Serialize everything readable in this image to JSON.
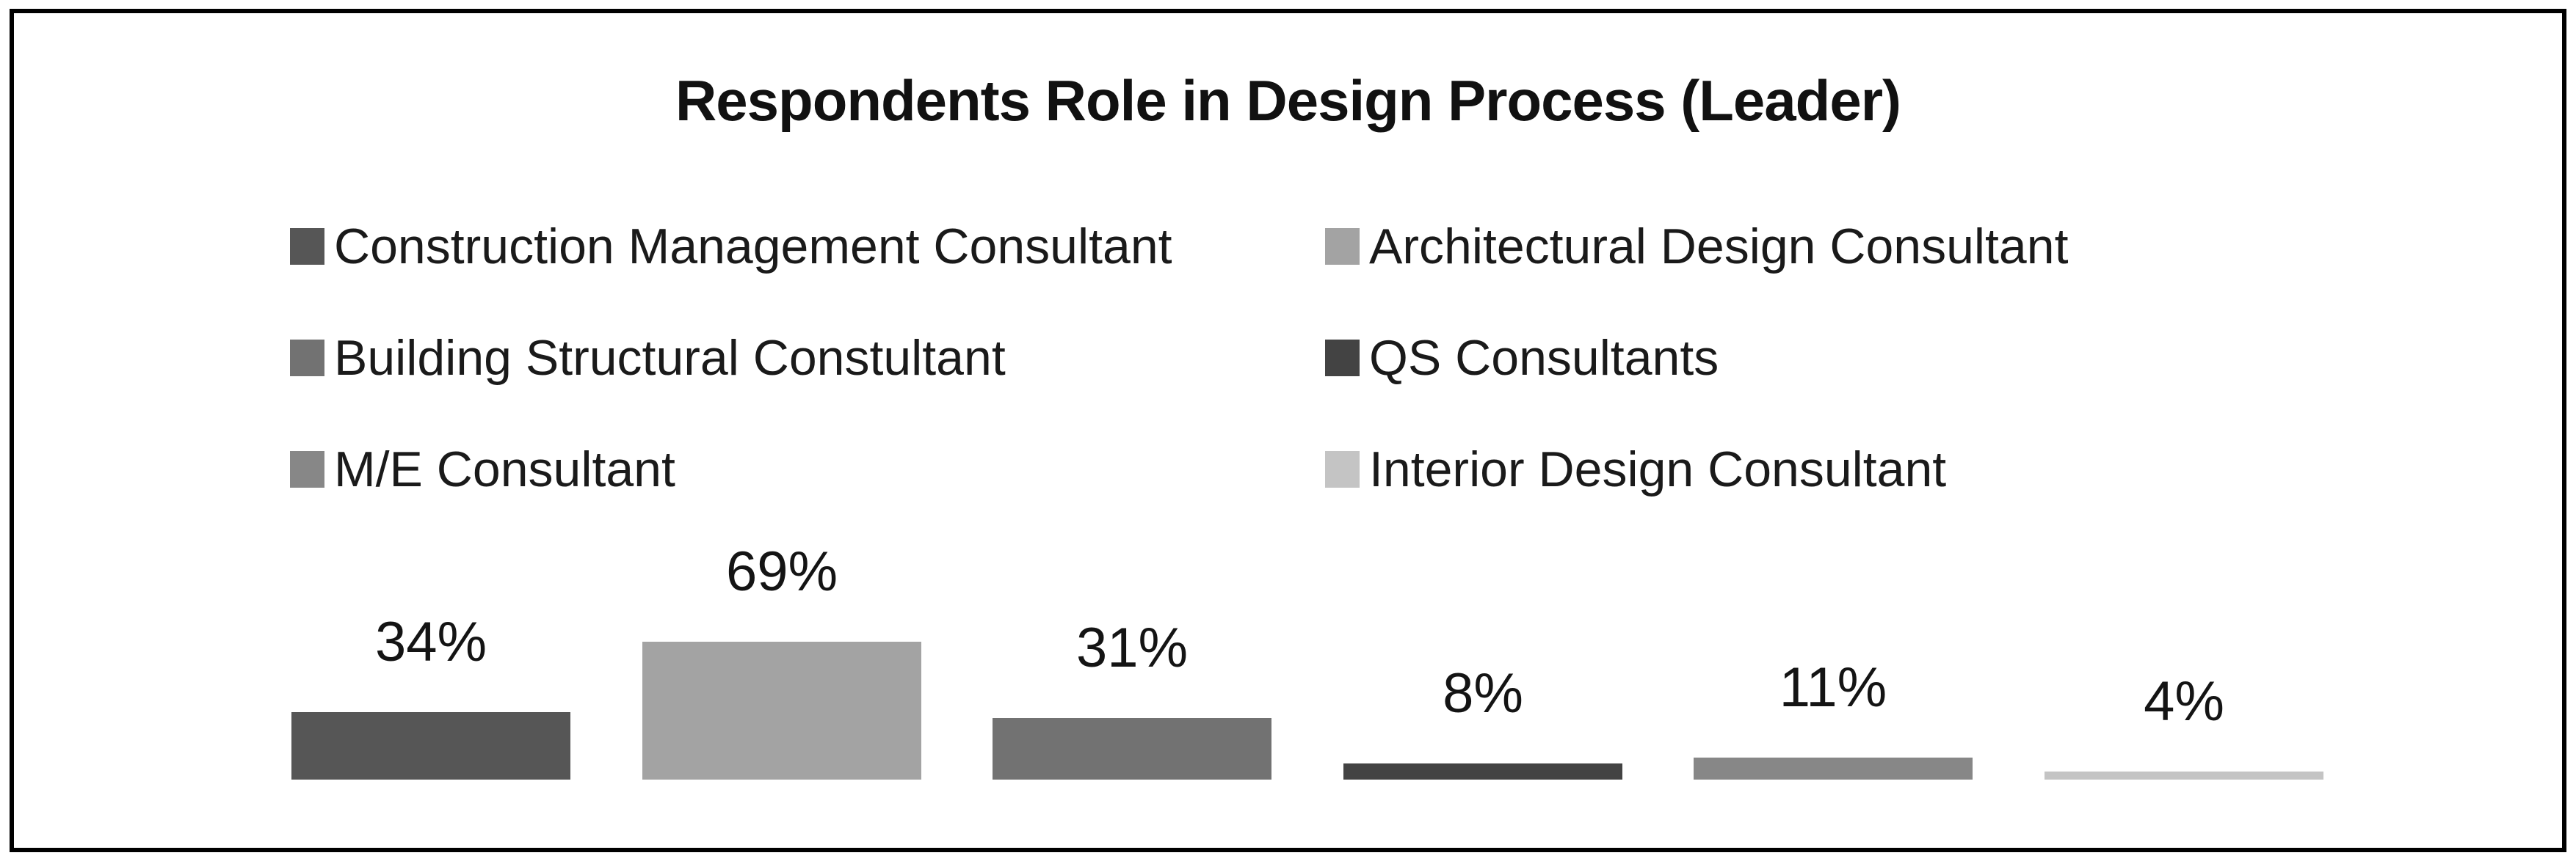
{
  "chart_data": {
    "type": "bar",
    "title": "Respondents Role in Design Process (Leader)",
    "categories": [
      "Construction Management Consultant",
      "Architectural Design Consultant",
      "Building Structural Constultant",
      "QS Consultants",
      "M/E Consultant",
      "Interior Design Consultant"
    ],
    "values": [
      34,
      69,
      31,
      8,
      11,
      4
    ],
    "data_labels": [
      "34%",
      "69%",
      "31%",
      "8%",
      "11%",
      "4%"
    ],
    "unit": "percent",
    "colors": [
      "#565656",
      "#A3A3A3",
      "#727272",
      "#434343",
      "#878787",
      "#C4C4C4"
    ],
    "ylim": [
      0,
      75
    ],
    "xlabel": "",
    "ylabel": "",
    "axes_visible": false,
    "gridlines": false,
    "legend_position": "top",
    "legend_columns": 2,
    "frame_color": "#000000",
    "background_color": "#ffffff",
    "title_color": "#111111",
    "text_color": "#1a1a1a"
  }
}
